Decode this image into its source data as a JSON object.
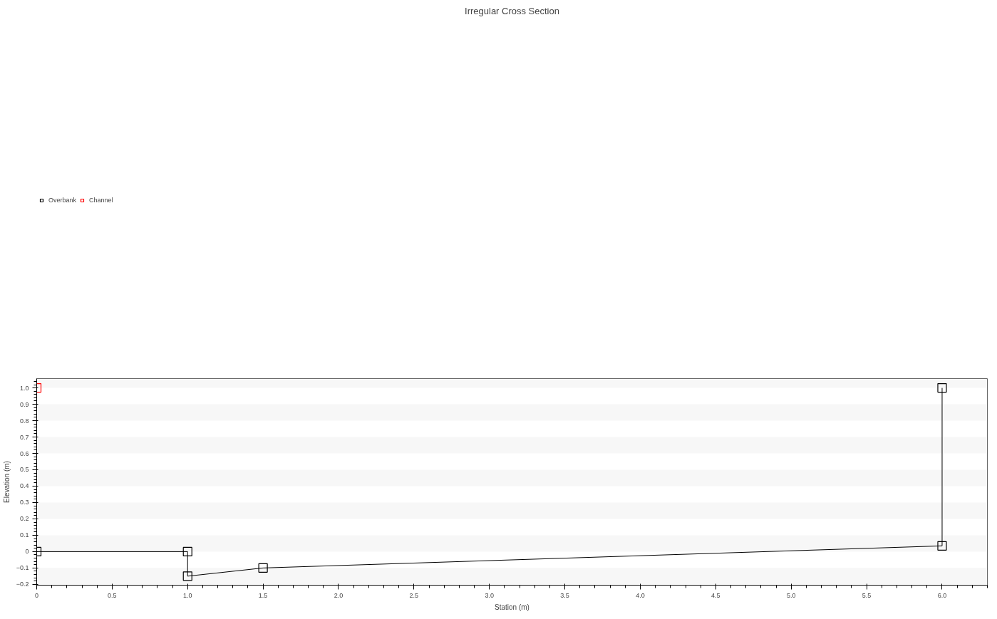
{
  "chart_data": {
    "type": "line",
    "title": "Irregular Cross Section",
    "xlabel": "Station (m)",
    "ylabel": "Elevation (m)",
    "xlim": [
      0,
      6.3
    ],
    "ylim": [
      -0.205,
      1.057
    ],
    "xticks": [
      {
        "value": 0,
        "label": "0"
      },
      0.5,
      {
        "value": 1,
        "label": "1.0"
      },
      1.5,
      {
        "value": 2,
        "label": "2.0"
      },
      2.5,
      {
        "value": 3,
        "label": "3.0"
      },
      3.5,
      {
        "value": 4,
        "label": "4.0"
      },
      4.5,
      {
        "value": 5,
        "label": "5.0"
      },
      5.5,
      {
        "value": 6,
        "label": "6.0"
      }
    ],
    "yticks": [
      -0.2,
      -0.1,
      {
        "value": 0,
        "label": "0"
      },
      0.1,
      0.2,
      0.3,
      0.4,
      0.5,
      0.6,
      0.7,
      0.8,
      0.9,
      {
        "value": 1,
        "label": "1.0"
      }
    ],
    "legend": "top left",
    "marker": "square",
    "line_style": "solid",
    "series": [
      {
        "name": "Overbank",
        "color": "#000000",
        "x": [
          0,
          1,
          1,
          1.5,
          6,
          6
        ],
        "values": [
          0,
          0,
          -0.15,
          -0.1,
          0.035,
          1.0
        ]
      },
      {
        "name": "Channel",
        "color": "#ff0000",
        "type": "scatter",
        "x": [
          0
        ],
        "values": [
          1.0
        ]
      }
    ]
  }
}
